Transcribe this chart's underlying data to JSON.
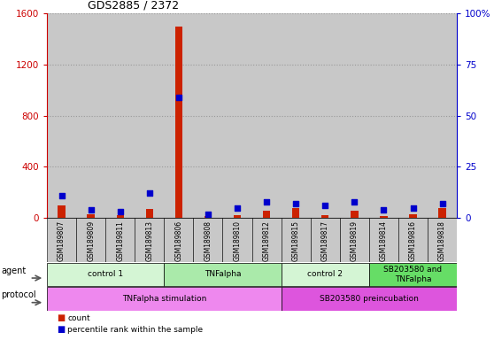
{
  "title": "GDS2885 / 2372",
  "samples": [
    "GSM189807",
    "GSM189809",
    "GSM189811",
    "GSM189813",
    "GSM189806",
    "GSM189808",
    "GSM189810",
    "GSM189812",
    "GSM189815",
    "GSM189817",
    "GSM189819",
    "GSM189814",
    "GSM189816",
    "GSM189818"
  ],
  "count_values": [
    100,
    30,
    20,
    70,
    1500,
    15,
    20,
    55,
    75,
    25,
    55,
    18,
    28,
    75
  ],
  "percentile_values": [
    11,
    4,
    3,
    12,
    59,
    2,
    5,
    8,
    7,
    6,
    8,
    4,
    5,
    7
  ],
  "ylim_left": [
    0,
    1600
  ],
  "ylim_right": [
    0,
    100
  ],
  "yticks_left": [
    0,
    400,
    800,
    1200,
    1600
  ],
  "yticks_right": [
    0,
    25,
    50,
    75,
    100
  ],
  "agent_groups": [
    {
      "label": "control 1",
      "start": 0,
      "end": 4,
      "color": "#d4f5d4"
    },
    {
      "label": "TNFalpha",
      "start": 4,
      "end": 8,
      "color": "#aaeaaa"
    },
    {
      "label": "control 2",
      "start": 8,
      "end": 11,
      "color": "#d4f5d4"
    },
    {
      "label": "SB203580 and\nTNFalpha",
      "start": 11,
      "end": 14,
      "color": "#66dd66"
    }
  ],
  "protocol_groups": [
    {
      "label": "TNFalpha stimulation",
      "start": 0,
      "end": 8,
      "color": "#ee88ee"
    },
    {
      "label": "SB203580 preincubation",
      "start": 8,
      "end": 14,
      "color": "#dd55dd"
    }
  ],
  "count_color": "#cc2200",
  "percentile_color": "#0000cc",
  "sample_bg_color": "#c8c8c8",
  "left_axis_color": "#cc0000",
  "right_axis_color": "#0000cc"
}
